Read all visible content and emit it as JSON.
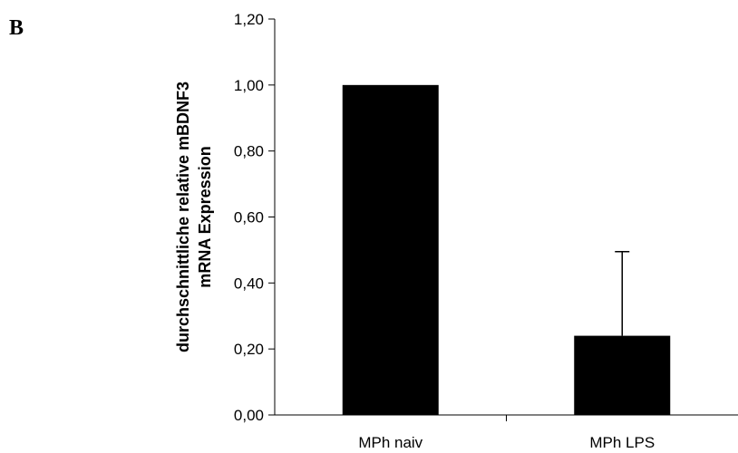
{
  "panel_letter": "B",
  "chart_data": {
    "type": "bar",
    "categories": [
      "MPh naiv",
      "MPh LPS"
    ],
    "values": [
      1.0,
      0.24
    ],
    "error_plus": [
      0,
      0.255
    ],
    "ylabel_lines": [
      "durchschnittliche relative mBDNF3",
      "mRNA Expression"
    ],
    "ylim": [
      0,
      1.2
    ],
    "yticks": [
      "0,00",
      "0,20",
      "0,40",
      "0,60",
      "0,80",
      "1,00",
      "1,20"
    ],
    "ytick_values": [
      0,
      0.2,
      0.4,
      0.6,
      0.8,
      1.0,
      1.2
    ],
    "bar_color": "#000000",
    "grid": false
  }
}
